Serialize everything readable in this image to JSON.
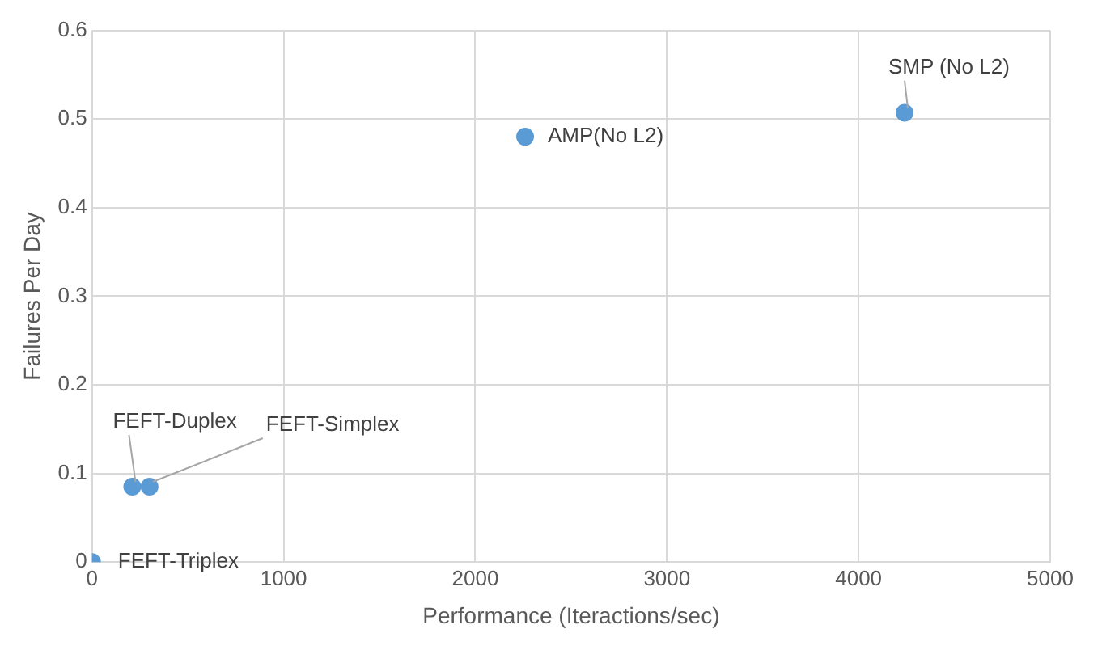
{
  "chart_data": {
    "type": "scatter",
    "xlabel": "Performance (Iteractions/sec)",
    "ylabel": "Failures Per Day",
    "x": [
      0,
      210,
      300,
      2260,
      4240
    ],
    "values": [
      0,
      0.085,
      0.085,
      0.48,
      0.507
    ],
    "color": "#5b9bd5",
    "marker": "circle",
    "xlim": [
      0,
      5000
    ],
    "xticks": [
      0,
      1000,
      2000,
      3000,
      4000,
      5000
    ],
    "ylim": [
      0,
      0.6
    ],
    "yticks": [
      0,
      0.1,
      0.2,
      0.3,
      0.4,
      0.5,
      0.6
    ],
    "grid": true,
    "legend": false,
    "annotations": [
      {
        "text": "FEFT-Triplex",
        "x": 0,
        "y": 0
      },
      {
        "text": "FEFT-Duplex",
        "x": 210,
        "y": 0.085
      },
      {
        "text": "FEFT-Simplex",
        "x": 300,
        "y": 0.085
      },
      {
        "text": "AMP(No L2)",
        "x": 2260,
        "y": 0.48
      },
      {
        "text": "SMP (No L2)",
        "x": 4240,
        "y": 0.507
      }
    ]
  }
}
